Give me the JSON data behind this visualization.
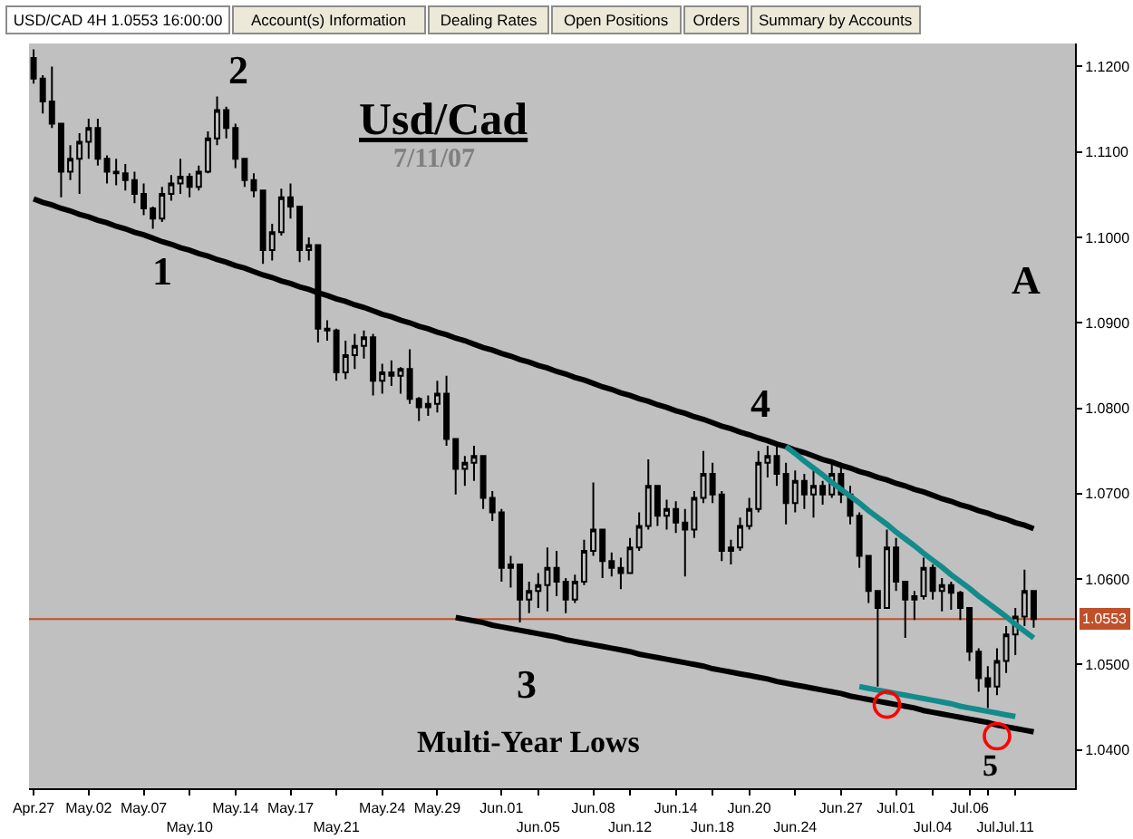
{
  "chart_data": {
    "type": "candlestick",
    "title": "Usd/Cad",
    "subtitle": "7/11/07",
    "color": "#000000",
    "categories": [
      "Apr.27",
      null,
      null,
      null,
      null,
      null,
      "May.02",
      null,
      null,
      null,
      null,
      null,
      "May.07",
      null,
      null,
      null,
      null,
      "May.10",
      null,
      null,
      null,
      null,
      "May.14",
      null,
      null,
      null,
      null,
      null,
      "May.17",
      null,
      null,
      null,
      null,
      "May.21",
      null,
      null,
      null,
      null,
      "May.24",
      null,
      null,
      null,
      null,
      null,
      "May.29",
      null,
      null,
      null,
      null,
      null,
      null,
      "Jun.01",
      null,
      null,
      null,
      "Jun.05",
      null,
      null,
      null,
      null,
      null,
      "Jun.08",
      null,
      null,
      null,
      "Jun.12",
      null,
      null,
      null,
      null,
      "Jun.14",
      null,
      null,
      null,
      "Jun.18",
      null,
      null,
      null,
      "Jun.20",
      null,
      null,
      null,
      null,
      "Jun.24",
      null,
      null,
      null,
      null,
      "Jun.27",
      null,
      null,
      null,
      null,
      null,
      "Jul.01",
      null,
      null,
      null,
      "Jul.04",
      null,
      null,
      null,
      "Jul.06",
      null,
      "Jul.",
      null,
      null,
      "Jul.11",
      null,
      null
    ],
    "ohlc": [
      [
        1.121,
        1.122,
        1.118,
        1.1186
      ],
      [
        1.1186,
        1.119,
        1.1145,
        1.1159
      ],
      [
        1.1159,
        1.12,
        1.1128,
        1.1133
      ],
      [
        1.1133,
        1.1133,
        1.1047,
        1.1077
      ],
      [
        1.1077,
        1.1108,
        1.1067,
        1.1092
      ],
      [
        1.1092,
        1.1122,
        1.1051,
        1.1112
      ],
      [
        1.1112,
        1.1139,
        1.1092,
        1.1128
      ],
      [
        1.1128,
        1.1139,
        1.1084,
        1.1092
      ],
      [
        1.1092,
        1.1096,
        1.1063,
        1.1077
      ],
      [
        1.1077,
        1.1092,
        1.1061,
        1.1075
      ],
      [
        1.1075,
        1.1086,
        1.1055,
        1.1067
      ],
      [
        1.1067,
        1.1077,
        1.104,
        1.1051
      ],
      [
        1.1051,
        1.1063,
        1.1026,
        1.1034
      ],
      [
        1.1034,
        1.1036,
        1.101,
        1.1022
      ],
      [
        1.1022,
        1.1059,
        1.1018,
        1.1051
      ],
      [
        1.1051,
        1.1073,
        1.1043,
        1.1063
      ],
      [
        1.1063,
        1.1092,
        1.1051,
        1.1071
      ],
      [
        1.1071,
        1.1075,
        1.1047,
        1.1059
      ],
      [
        1.1059,
        1.1084,
        1.1055,
        1.1077
      ],
      [
        1.1077,
        1.1124,
        1.1075,
        1.1116
      ],
      [
        1.1116,
        1.1165,
        1.1108,
        1.1149
      ],
      [
        1.1149,
        1.1153,
        1.1116,
        1.1128
      ],
      [
        1.1128,
        1.1133,
        1.1081,
        1.1092
      ],
      [
        1.1092,
        1.1092,
        1.1059,
        1.1067
      ],
      [
        1.1067,
        1.1075,
        1.1047,
        1.1055
      ],
      [
        1.1055,
        1.1055,
        1.0969,
        1.0985
      ],
      [
        1.0985,
        1.1016,
        1.0973,
        1.1006
      ],
      [
        1.1006,
        1.1057,
        1.1002,
        1.1047
      ],
      [
        1.1047,
        1.1063,
        1.1022,
        1.1036
      ],
      [
        1.1036,
        1.1036,
        1.0971,
        1.0985
      ],
      [
        1.0985,
        1.1,
        1.0973,
        1.0991
      ],
      [
        1.0991,
        1.0991,
        1.0877,
        1.0893
      ],
      [
        1.0893,
        1.0903,
        1.0879,
        1.0891
      ],
      [
        1.0891,
        1.0893,
        1.0832,
        1.0842
      ],
      [
        1.0842,
        1.0879,
        1.0834,
        1.0862
      ],
      [
        1.0862,
        1.0887,
        1.0846,
        1.0873
      ],
      [
        1.0873,
        1.0891,
        1.0858,
        1.0883
      ],
      [
        1.0883,
        1.0887,
        1.0815,
        1.0832
      ],
      [
        1.0832,
        1.0852,
        1.0817,
        1.0842
      ],
      [
        1.0842,
        1.0856,
        1.0826,
        1.0838
      ],
      [
        1.0838,
        1.0848,
        1.0817,
        1.0846
      ],
      [
        1.0846,
        1.0869,
        1.0805,
        1.0811
      ],
      [
        1.0811,
        1.0813,
        1.0785,
        1.0801
      ],
      [
        1.0801,
        1.0815,
        1.0791,
        1.0805
      ],
      [
        1.0805,
        1.0832,
        1.0795,
        1.0817
      ],
      [
        1.0817,
        1.0838,
        1.0756,
        1.0764
      ],
      [
        1.0764,
        1.0764,
        1.0699,
        1.0729
      ],
      [
        1.0729,
        1.0744,
        1.0709,
        1.0736
      ],
      [
        1.0736,
        1.0756,
        1.0715,
        1.0744
      ],
      [
        1.0744,
        1.0744,
        1.0682,
        1.0695
      ],
      [
        1.0695,
        1.0703,
        1.0668,
        1.0678
      ],
      [
        1.0678,
        1.0682,
        1.0597,
        1.0613
      ],
      [
        1.0613,
        1.0627,
        1.059,
        1.0617
      ],
      [
        1.0617,
        1.0617,
        1.0549,
        1.0576
      ],
      [
        1.0576,
        1.0597,
        1.056,
        1.0586
      ],
      [
        1.0586,
        1.0607,
        1.0566,
        1.0593
      ],
      [
        1.0593,
        1.0637,
        1.0562,
        1.0613
      ],
      [
        1.0613,
        1.0633,
        1.058,
        1.0597
      ],
      [
        1.0597,
        1.0601,
        1.056,
        1.0576
      ],
      [
        1.0576,
        1.0605,
        1.0572,
        1.0597
      ],
      [
        1.0597,
        1.0646,
        1.0593,
        1.0633
      ],
      [
        1.0633,
        1.0713,
        1.0627,
        1.0658
      ],
      [
        1.0658,
        1.0658,
        1.0601,
        1.0621
      ],
      [
        1.0621,
        1.0631,
        1.0603,
        1.0613
      ],
      [
        1.0613,
        1.0625,
        1.0588,
        1.0607
      ],
      [
        1.0607,
        1.0648,
        1.0607,
        1.0637
      ],
      [
        1.0637,
        1.0678,
        1.0633,
        1.0662
      ],
      [
        1.0662,
        1.074,
        1.0658,
        1.0709
      ],
      [
        1.0709,
        1.0709,
        1.0662,
        1.0674
      ],
      [
        1.0674,
        1.0693,
        1.0658,
        1.0682
      ],
      [
        1.0682,
        1.0691,
        1.0654,
        1.0666
      ],
      [
        1.0666,
        1.0682,
        1.0603,
        1.0658
      ],
      [
        1.0658,
        1.0703,
        1.0648,
        1.0695
      ],
      [
        1.0695,
        1.075,
        1.0689,
        1.0723
      ],
      [
        1.0723,
        1.0736,
        1.0689,
        1.0699
      ],
      [
        1.0699,
        1.0703,
        1.0621,
        1.0633
      ],
      [
        1.0633,
        1.0646,
        1.0617,
        1.0637
      ],
      [
        1.0637,
        1.0672,
        1.0633,
        1.0662
      ],
      [
        1.0662,
        1.0695,
        1.0658,
        1.0682
      ],
      [
        1.0682,
        1.075,
        1.0678,
        1.0736
      ],
      [
        1.0736,
        1.0756,
        1.0719,
        1.0744
      ],
      [
        1.0744,
        1.076,
        1.0709,
        1.0723
      ],
      [
        1.0723,
        1.0736,
        1.0664,
        1.0689
      ],
      [
        1.0689,
        1.0727,
        1.0678,
        1.0715
      ],
      [
        1.0715,
        1.0723,
        1.0682,
        1.0699
      ],
      [
        1.0699,
        1.0727,
        1.0672,
        1.0709
      ],
      [
        1.0709,
        1.0715,
        1.0687,
        1.0699
      ],
      [
        1.0699,
        1.0734,
        1.0695,
        1.0723
      ],
      [
        1.0723,
        1.0736,
        1.0689,
        1.0699
      ],
      [
        1.0699,
        1.0709,
        1.0664,
        1.0674
      ],
      [
        1.0674,
        1.0678,
        1.0613,
        1.0627
      ],
      [
        1.0627,
        1.0627,
        1.0572,
        1.0586
      ],
      [
        1.0586,
        1.0586,
        1.0474,
        1.0566
      ],
      [
        1.0566,
        1.0658,
        1.0566,
        1.0637
      ],
      [
        1.0637,
        1.0648,
        1.0586,
        1.0597
      ],
      [
        1.0597,
        1.0597,
        1.0531,
        1.0576
      ],
      [
        1.0576,
        1.0586,
        1.0552,
        1.058
      ],
      [
        1.058,
        1.0625,
        1.0576,
        1.0613
      ],
      [
        1.0613,
        1.0617,
        1.0576,
        1.0586
      ],
      [
        1.0586,
        1.0601,
        1.0562,
        1.0593
      ],
      [
        1.0593,
        1.0597,
        1.0564,
        1.0584
      ],
      [
        1.0584,
        1.0586,
        1.0552,
        1.0566
      ],
      [
        1.0566,
        1.0566,
        1.0504,
        1.0515
      ],
      [
        1.0515,
        1.0519,
        1.0468,
        1.0484
      ],
      [
        1.0484,
        1.0498,
        1.0449,
        1.0474
      ],
      [
        1.0474,
        1.0519,
        1.0464,
        1.0504
      ],
      [
        1.0504,
        1.0545,
        1.049,
        1.0535
      ],
      [
        1.0535,
        1.0566,
        1.0511,
        1.0556
      ],
      [
        1.0556,
        1.0611,
        1.0545,
        1.0586
      ],
      [
        1.0586,
        1.0586,
        1.0543,
        1.0553
      ]
    ],
    "series": [
      {
        "type": "line",
        "color": "#000000",
        "values": [
          1.1045,
          1.1041,
          1.1038,
          1.1034,
          1.1031,
          1.1027,
          1.1024,
          1.102,
          1.1017,
          1.1013,
          1.101,
          1.1006,
          1.1003,
          1.0999,
          1.0995,
          1.0992,
          1.0988,
          1.0985,
          1.0981,
          1.0978,
          1.0974,
          1.0971,
          1.0967,
          1.0964,
          1.096,
          1.0956,
          1.0953,
          1.0949,
          1.0946,
          1.0942,
          1.0939,
          1.0935,
          1.0932,
          1.0928,
          1.0925,
          1.0921,
          1.0918,
          1.0914,
          1.091,
          1.0907,
          1.0903,
          1.09,
          1.0896,
          1.0893,
          1.0889,
          1.0886,
          1.0882,
          1.0879,
          1.0875,
          1.0871,
          1.0868,
          1.0864,
          1.0861,
          1.0857,
          1.0854,
          1.085,
          1.0847,
          1.0843,
          1.084,
          1.0836,
          1.0833,
          1.0829,
          1.0825,
          1.0822,
          1.0818,
          1.0815,
          1.0811,
          1.0808,
          1.0804,
          1.0801,
          1.0797,
          1.0794,
          1.079,
          1.0787,
          1.0783,
          1.0779,
          1.0776,
          1.0772,
          1.0769,
          1.0765,
          1.0762,
          1.0758,
          1.0755,
          1.0751,
          1.0748,
          1.0744,
          1.074,
          1.0737,
          1.0733,
          1.073,
          1.0726,
          1.0723,
          1.0719,
          1.0716,
          1.0712,
          1.0709,
          1.0705,
          1.0702,
          1.0698,
          1.0694,
          1.0691,
          1.0687,
          1.0684,
          1.068,
          1.0677,
          1.0673,
          1.067,
          1.0666,
          1.0663,
          1.0659
        ]
      },
      {
        "type": "line",
        "color": "#000000",
        "values": [
          null,
          null,
          null,
          null,
          null,
          null,
          null,
          null,
          null,
          null,
          null,
          null,
          null,
          null,
          null,
          null,
          null,
          null,
          null,
          null,
          null,
          null,
          null,
          null,
          null,
          null,
          null,
          null,
          null,
          null,
          null,
          null,
          null,
          null,
          null,
          null,
          null,
          null,
          null,
          null,
          null,
          null,
          null,
          null,
          null,
          null,
          1.0555,
          1.0553,
          1.0551,
          1.0549,
          1.0546,
          1.0544,
          1.0542,
          1.054,
          1.0538,
          1.0536,
          1.0534,
          1.0532,
          1.0529,
          1.0527,
          1.0525,
          1.0523,
          1.0521,
          1.0519,
          1.0517,
          1.0515,
          1.0512,
          1.051,
          1.0508,
          1.0506,
          1.0504,
          1.0502,
          1.05,
          1.0498,
          1.0495,
          1.0493,
          1.0491,
          1.0489,
          1.0487,
          1.0485,
          1.0483,
          1.048,
          1.0478,
          1.0476,
          1.0474,
          1.0472,
          1.047,
          1.0468,
          1.0466,
          1.0463,
          1.0461,
          1.0459,
          1.0457,
          1.0455,
          1.0453,
          1.0451,
          1.0449,
          1.0446,
          1.0444,
          1.0442,
          1.044,
          1.0438,
          1.0436,
          1.0434,
          1.0432,
          1.0429,
          1.0427,
          1.0425,
          1.0423,
          1.0421
        ]
      },
      {
        "type": "line",
        "color": "#138b8b",
        "values": [
          null,
          null,
          null,
          null,
          null,
          null,
          null,
          null,
          null,
          null,
          null,
          null,
          null,
          null,
          null,
          null,
          null,
          null,
          null,
          null,
          null,
          null,
          null,
          null,
          null,
          null,
          null,
          null,
          null,
          null,
          null,
          null,
          null,
          null,
          null,
          null,
          null,
          null,
          null,
          null,
          null,
          null,
          null,
          null,
          null,
          null,
          null,
          null,
          null,
          null,
          null,
          null,
          null,
          null,
          null,
          null,
          null,
          null,
          null,
          null,
          null,
          null,
          null,
          null,
          null,
          null,
          null,
          null,
          null,
          null,
          null,
          null,
          null,
          null,
          null,
          null,
          null,
          null,
          null,
          null,
          null,
          null,
          1.0755,
          1.0747,
          1.0738,
          1.073,
          1.0722,
          1.0713,
          1.0705,
          1.0697,
          1.0689,
          1.068,
          1.0672,
          1.0664,
          1.0655,
          1.0647,
          1.0639,
          1.063,
          1.0622,
          1.0614,
          1.0605,
          1.0597,
          1.0589,
          1.058,
          1.0572,
          1.0564,
          1.0556,
          1.0547,
          1.0539,
          1.0531
        ]
      },
      {
        "type": "line",
        "color": "#138b8b",
        "values": [
          null,
          null,
          null,
          null,
          null,
          null,
          null,
          null,
          null,
          null,
          null,
          null,
          null,
          null,
          null,
          null,
          null,
          null,
          null,
          null,
          null,
          null,
          null,
          null,
          null,
          null,
          null,
          null,
          null,
          null,
          null,
          null,
          null,
          null,
          null,
          null,
          null,
          null,
          null,
          null,
          null,
          null,
          null,
          null,
          null,
          null,
          null,
          null,
          null,
          null,
          null,
          null,
          null,
          null,
          null,
          null,
          null,
          null,
          null,
          null,
          null,
          null,
          null,
          null,
          null,
          null,
          null,
          null,
          null,
          null,
          null,
          null,
          null,
          null,
          null,
          null,
          null,
          null,
          null,
          null,
          null,
          null,
          null,
          null,
          null,
          null,
          null,
          null,
          null,
          null,
          1.0474,
          1.0472,
          1.047,
          1.0468,
          1.0466,
          1.0464,
          1.0462,
          1.046,
          1.0458,
          1.0456,
          1.0454,
          1.0451,
          1.0449,
          1.0447,
          1.0445,
          1.0443,
          1.0441,
          1.0439,
          null,
          null
        ]
      },
      {
        "type": "scatter",
        "color": "#ff0000",
        "marker": "circle",
        "values": [
          null,
          null,
          null,
          null,
          null,
          null,
          null,
          null,
          null,
          null,
          null,
          null,
          null,
          null,
          null,
          null,
          null,
          null,
          null,
          null,
          null,
          null,
          null,
          null,
          null,
          null,
          null,
          null,
          null,
          null,
          null,
          null,
          null,
          null,
          null,
          null,
          null,
          null,
          null,
          null,
          null,
          null,
          null,
          null,
          null,
          null,
          null,
          null,
          null,
          null,
          null,
          null,
          null,
          null,
          null,
          null,
          null,
          null,
          null,
          null,
          null,
          null,
          null,
          null,
          null,
          null,
          null,
          null,
          null,
          null,
          null,
          null,
          null,
          null,
          null,
          null,
          null,
          null,
          null,
          null,
          null,
          null,
          null,
          null,
          null,
          null,
          null,
          null,
          null,
          null,
          null,
          null,
          null,
          1.0453,
          null,
          null,
          null,
          null,
          null,
          null,
          null,
          null,
          null,
          null,
          null,
          1.0416,
          null,
          null,
          null,
          null
        ]
      }
    ],
    "ref_lines": [
      {
        "axis": "y",
        "value": 1.0553,
        "label": "1.0553",
        "color": "#c0502a"
      }
    ],
    "annotations": [
      "USD/CAD 4H 1.0553 16:00:00",
      "Account(s) Information",
      "Dealing Rates",
      "Open Positions",
      "Orders",
      "Summary by Accounts",
      "1",
      "2",
      "3",
      "4",
      "5",
      "A",
      "Multi-Year Lows"
    ],
    "ylim": [
      1.0355,
      1.1227
    ],
    "yticks": [
      {
        "value": 1.04,
        "label": "1.0400"
      },
      {
        "value": 1.05,
        "label": "1.0500"
      },
      {
        "value": 1.06,
        "label": "1.0600"
      },
      {
        "value": 1.07,
        "label": "1.0700"
      },
      {
        "value": 1.08,
        "label": "1.0800"
      },
      {
        "value": 1.09,
        "label": "1.0900"
      },
      {
        "value": 1.1,
        "label": "1.1000"
      },
      {
        "value": 1.11,
        "label": "1.1100"
      },
      {
        "value": 1.12,
        "label": "1.1200"
      }
    ]
  }
}
